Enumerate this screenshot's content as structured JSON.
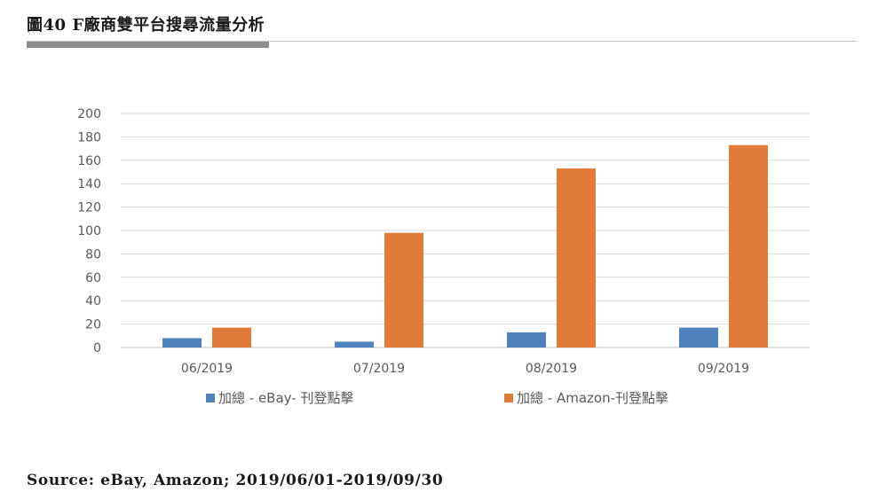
{
  "header": {
    "title": "圖40 F廠商雙平台搜尋流量分析"
  },
  "source": {
    "text": "Source: eBay, Amazon; 2019/06/01-2019/09/30"
  },
  "chart_data": {
    "type": "bar",
    "title": "",
    "xlabel": "",
    "ylabel": "",
    "categories": [
      "06/2019",
      "07/2019",
      "08/2019",
      "09/2019"
    ],
    "series": [
      {
        "name": "加總 - eBay- 刊登點擊",
        "values": [
          8,
          5,
          13,
          17
        ],
        "color": "#4f81bd"
      },
      {
        "name": "加總 - Amazon-刊登點擊",
        "values": [
          17,
          98,
          153,
          173
        ],
        "color": "#e07b39"
      }
    ],
    "ylim": [
      0,
      200
    ],
    "yticks": [
      0,
      20,
      40,
      60,
      80,
      100,
      120,
      140,
      160,
      180,
      200
    ],
    "grid": true,
    "legend_position": "bottom"
  }
}
